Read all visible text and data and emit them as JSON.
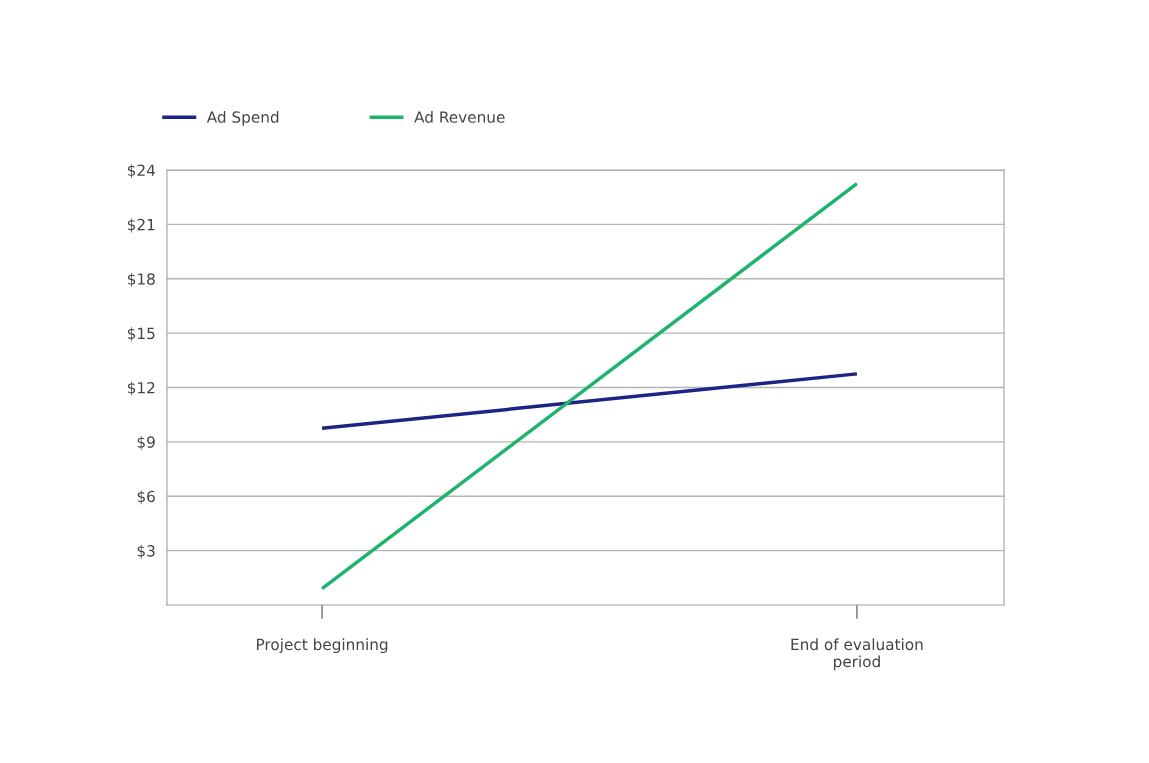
{
  "chart_data": {
    "type": "line",
    "categories": [
      "Project beginning",
      "End of evaluation\nperiod"
    ],
    "series": [
      {
        "name": "Ad Spend",
        "color": "#1c2585",
        "values": [
          9.75,
          12.75
        ]
      },
      {
        "name": "Ad Revenue",
        "color": "#1fb46e",
        "values": [
          0.9,
          23.25
        ]
      }
    ],
    "ylim": [
      0,
      24
    ],
    "yticks": [
      {
        "value": 3,
        "label": "$3"
      },
      {
        "value": 6,
        "label": "$6"
      },
      {
        "value": 9,
        "label": "$9"
      },
      {
        "value": 12,
        "label": "$12"
      },
      {
        "value": 15,
        "label": "$15"
      },
      {
        "value": 18,
        "label": "$18"
      },
      {
        "value": 21,
        "label": "$21"
      },
      {
        "value": 24,
        "label": "$24"
      }
    ],
    "grid": "y",
    "legend": "top left",
    "marker": "none",
    "line_style": "solid"
  }
}
